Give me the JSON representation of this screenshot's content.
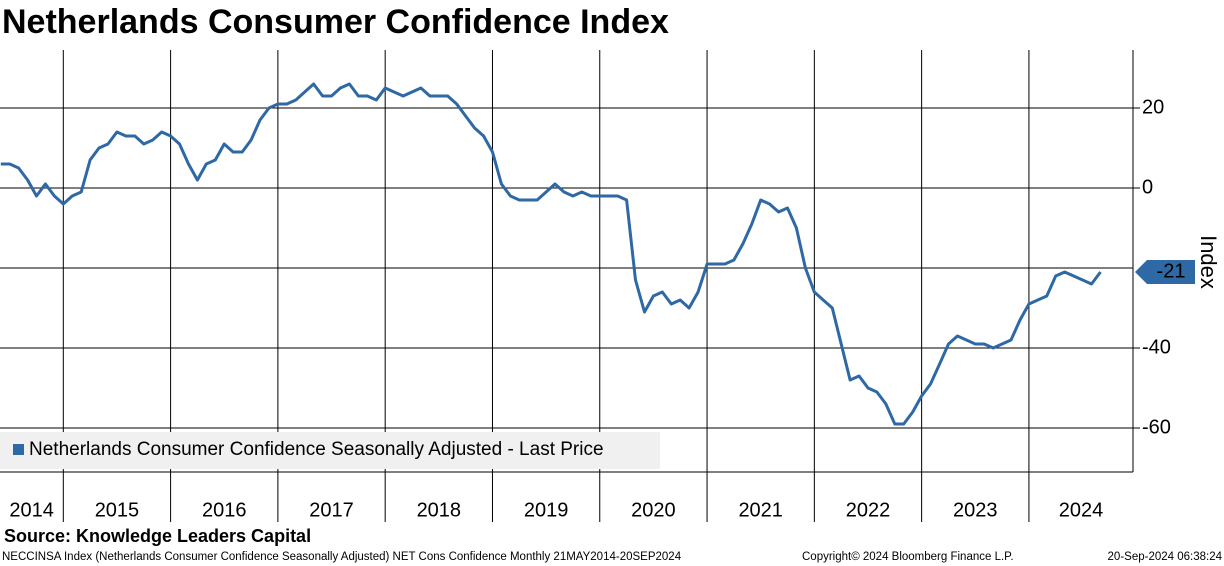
{
  "chart_data": {
    "type": "line",
    "title": "Netherlands Consumer Confidence Index",
    "y_label": "Index",
    "source": "Source: Knowledge Leaders Capital",
    "footer": {
      "left": "NECCINSA Index (Netherlands Consumer Confidence Seasonally Adjusted) NET Cons Confidence  Monthly 21MAY2014-20SEP2024",
      "center": "Copyright© 2024 Bloomberg Finance L.P.",
      "right": "20-Sep-2024 06:38:24"
    },
    "xlim": [
      2014.41,
      2024.97
    ],
    "xticks": [
      2014,
      2015,
      2016,
      2017,
      2018,
      2019,
      2020,
      2021,
      2022,
      2023,
      2024
    ],
    "ylim": [
      -71,
      34.5
    ],
    "yticks": [
      20,
      0,
      -40,
      -60
    ],
    "ygrid": [
      20,
      0,
      -20,
      -40,
      -60
    ],
    "grid": true,
    "legend_position": "bottom-left",
    "x": [
      2014.417,
      2014.5,
      2014.583,
      2014.667,
      2014.75,
      2014.833,
      2014.917,
      2015.0,
      2015.083,
      2015.167,
      2015.25,
      2015.333,
      2015.417,
      2015.5,
      2015.583,
      2015.667,
      2015.75,
      2015.833,
      2015.917,
      2016.0,
      2016.083,
      2016.167,
      2016.25,
      2016.333,
      2016.417,
      2016.5,
      2016.583,
      2016.667,
      2016.75,
      2016.833,
      2016.917,
      2017.0,
      2017.083,
      2017.167,
      2017.25,
      2017.333,
      2017.417,
      2017.5,
      2017.583,
      2017.667,
      2017.75,
      2017.833,
      2017.917,
      2018.0,
      2018.083,
      2018.167,
      2018.25,
      2018.333,
      2018.417,
      2018.5,
      2018.583,
      2018.667,
      2018.75,
      2018.833,
      2018.917,
      2019.0,
      2019.083,
      2019.167,
      2019.25,
      2019.333,
      2019.417,
      2019.5,
      2019.583,
      2019.667,
      2019.75,
      2019.833,
      2019.917,
      2020.0,
      2020.083,
      2020.167,
      2020.25,
      2020.333,
      2020.417,
      2020.5,
      2020.583,
      2020.667,
      2020.75,
      2020.833,
      2020.917,
      2021.0,
      2021.083,
      2021.167,
      2021.25,
      2021.333,
      2021.417,
      2021.5,
      2021.583,
      2021.667,
      2021.75,
      2021.833,
      2021.917,
      2022.0,
      2022.083,
      2022.167,
      2022.25,
      2022.333,
      2022.417,
      2022.5,
      2022.583,
      2022.667,
      2022.75,
      2022.833,
      2022.917,
      2023.0,
      2023.083,
      2023.167,
      2023.25,
      2023.333,
      2023.417,
      2023.5,
      2023.583,
      2023.667,
      2023.75,
      2023.833,
      2023.917,
      2024.0,
      2024.083,
      2024.167,
      2024.25,
      2024.333,
      2024.417,
      2024.5,
      2024.583,
      2024.667
    ],
    "series": [
      {
        "name": "Netherlands Consumer Confidence Seasonally Adjusted - Last Price",
        "color": "#2e68a5",
        "values": [
          6,
          6,
          5,
          2,
          -2,
          1,
          -2,
          -4,
          -2,
          -1,
          7,
          10,
          11,
          14,
          13,
          13,
          11,
          12,
          14,
          13,
          11,
          6,
          2,
          6,
          7,
          11,
          9,
          9,
          12,
          17,
          20,
          21,
          21,
          22,
          24,
          26,
          23,
          23,
          25,
          26,
          23,
          23,
          22,
          25,
          24,
          23,
          24,
          25,
          23,
          23,
          23,
          21,
          18,
          15,
          13,
          9,
          1,
          -2,
          -3,
          -3,
          -3,
          -1,
          1,
          -1,
          -2,
          -1,
          -2,
          -2,
          -2,
          -2,
          -3,
          -23,
          -31,
          -27,
          -26,
          -29,
          -28,
          -30,
          -26,
          -19,
          -19,
          -19,
          -18,
          -14,
          -9,
          -3,
          -4,
          -6,
          -5,
          -10,
          -20,
          -26,
          -28,
          -30,
          -39,
          -48,
          -47,
          -50,
          -51,
          -54,
          -59,
          -59,
          -56,
          -52,
          -49,
          -44,
          -39,
          -37,
          -38,
          -39,
          -39,
          -40,
          -39,
          -38,
          -33,
          -29,
          -28,
          -27,
          -22,
          -21,
          -22,
          -23,
          -24,
          -21
        ]
      }
    ]
  }
}
